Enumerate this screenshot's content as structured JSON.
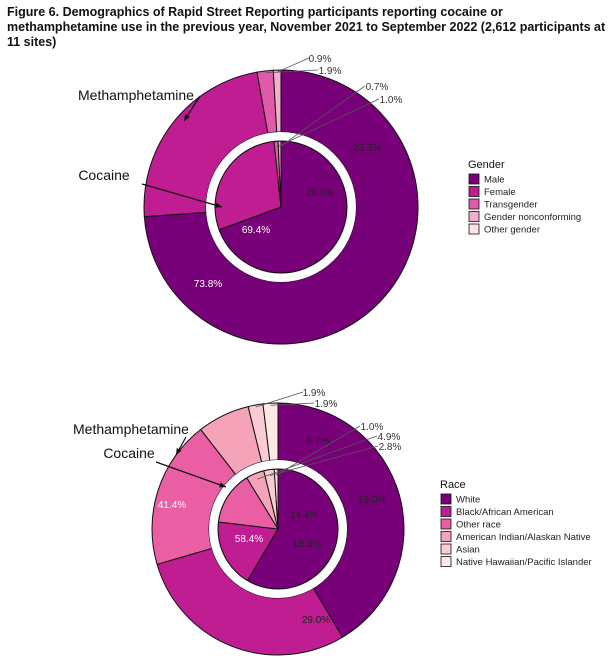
{
  "title": "Figure 6. Demographics of Rapid Street Reporting participants reporting cocaine or methamphetamine use in the previous year, November 2021 to September 2022 (2,612 participants at 11 sites)",
  "chart_data": [
    {
      "type": "pie",
      "name": "Gender",
      "legend_title": "Gender",
      "categories": [
        "Male",
        "Female",
        "Transgender",
        "Gender nonconforming",
        "Other gender"
      ],
      "colors": [
        "#780078",
        "#c01d92",
        "#e05aa8",
        "#f3aecf",
        "#fbe4e1"
      ],
      "series": [
        {
          "name": "Methamphetamine",
          "ring": "outer",
          "values": [
            73.8,
            23.3,
            1.9,
            0.9,
            0.0
          ]
        },
        {
          "name": "Cocaine",
          "ring": "inner",
          "values": [
            69.4,
            28.9,
            1.0,
            0.7,
            0.0
          ]
        }
      ],
      "ring_labels": [
        "Methamphetamine",
        "Cocaine"
      ]
    },
    {
      "type": "pie",
      "name": "Race",
      "legend_title": "Race",
      "categories": [
        "White",
        "Black/African American",
        "Other race",
        "American Indian/Alaskan Native",
        "Asian",
        "Native Hawaiian/Pacific Islander"
      ],
      "colors": [
        "#780078",
        "#c01d92",
        "#ea5fa3",
        "#f4a3b9",
        "#f9ccd5",
        "#fde9e4"
      ],
      "series": [
        {
          "name": "Methamphetamine",
          "ring": "outer",
          "values": [
            41.4,
            29.0,
            19.0,
            6.7,
            1.9,
            1.9
          ]
        },
        {
          "name": "Cocaine",
          "ring": "inner",
          "values": [
            58.4,
            18.3,
            14.4,
            4.9,
            2.8,
            1.0
          ]
        }
      ],
      "ring_labels": [
        "Methamphetamine",
        "Cocaine"
      ]
    }
  ]
}
